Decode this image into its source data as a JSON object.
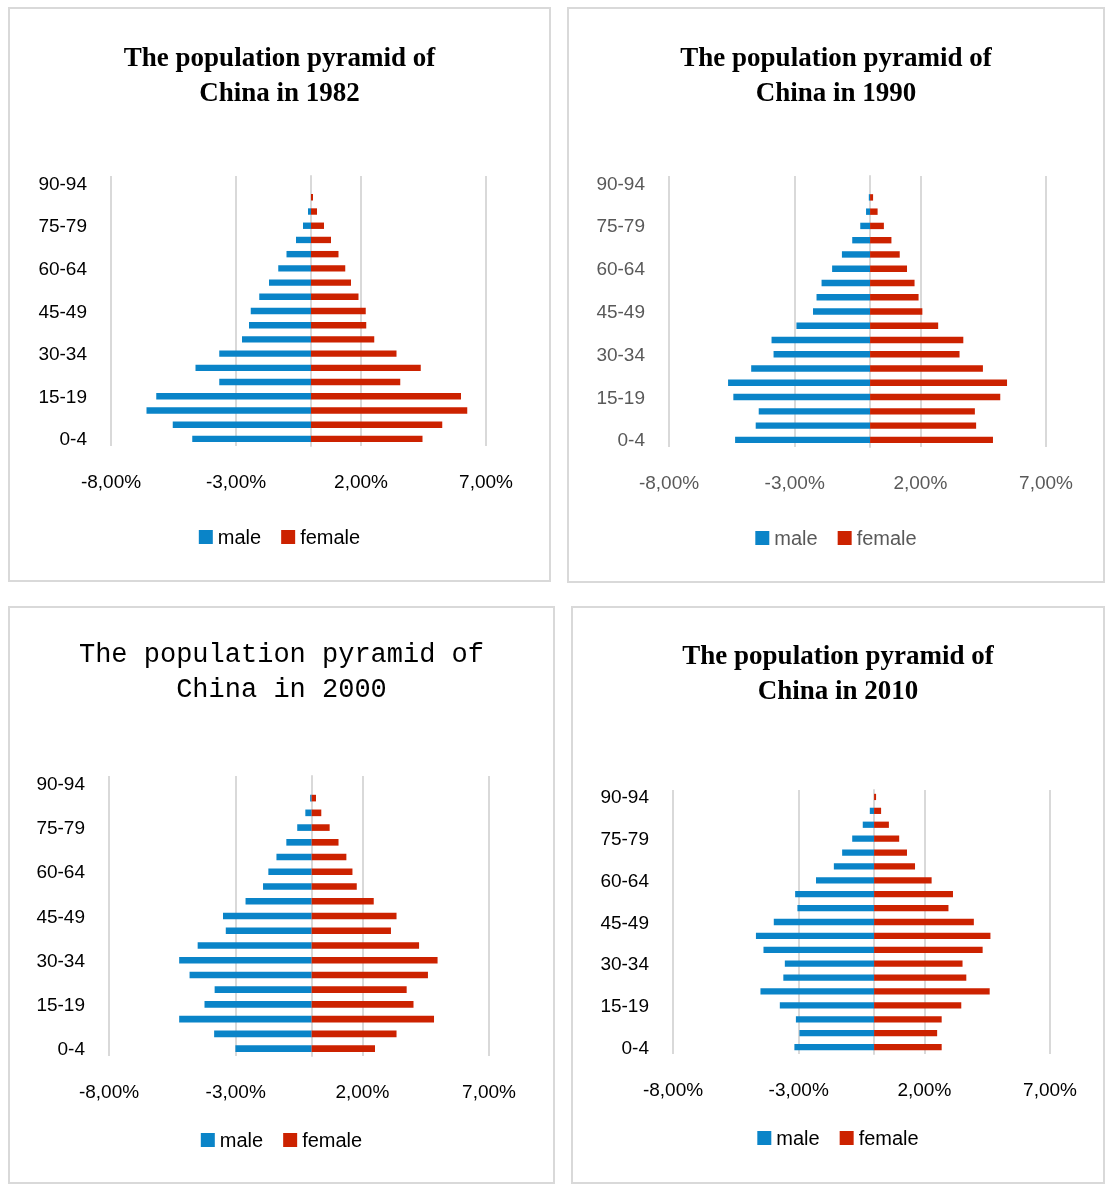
{
  "chart_data": [
    {
      "type": "bar",
      "orientation": "horizontal",
      "stacked": true,
      "title": "The population pyramid of China in 1982",
      "categories": [
        "90-94",
        null,
        null,
        "75-79",
        null,
        null,
        "60-64",
        null,
        null,
        "45-49",
        null,
        null,
        "30-34",
        null,
        null,
        "15-19",
        null,
        null,
        "0-4"
      ],
      "series": [
        {
          "name": "male",
          "color": "#0a84c8",
          "values": [
            null,
            null,
            -0.12,
            -0.32,
            -0.6,
            -0.98,
            -1.31,
            -1.68,
            -2.07,
            -2.41,
            -2.48,
            -2.76,
            -3.67,
            -4.62,
            -3.67,
            -6.19,
            -6.58,
            -5.53,
            -4.75
          ]
        },
        {
          "name": "female",
          "color": "#cc2200",
          "values": [
            null,
            0.08,
            0.24,
            0.52,
            0.8,
            1.1,
            1.37,
            1.6,
            1.9,
            2.19,
            2.21,
            2.53,
            3.42,
            4.39,
            3.57,
            6.0,
            6.25,
            5.25,
            4.46
          ]
        }
      ],
      "xlim": [
        -8,
        7
      ],
      "xticks": [
        {
          "value": -8,
          "label": "-8,00%"
        },
        {
          "value": -3,
          "label": "-3,00%"
        },
        {
          "value": 2,
          "label": "2,00%"
        },
        {
          "value": 7,
          "label": "7,00%"
        }
      ],
      "grid": "x",
      "legend": "bottom"
    },
    {
      "type": "bar",
      "orientation": "horizontal",
      "stacked": true,
      "title": "The population pyramid of China in 1990",
      "categories": [
        "90-94",
        null,
        null,
        "75-79",
        null,
        null,
        "60-64",
        null,
        null,
        "45-49",
        null,
        null,
        "30-34",
        null,
        null,
        "15-19",
        null,
        null,
        "0-4"
      ],
      "series": [
        {
          "name": "male",
          "color": "#0a84c8",
          "values": [
            null,
            -0.05,
            -0.16,
            -0.39,
            -0.71,
            -1.12,
            -1.51,
            -1.93,
            -2.13,
            -2.27,
            -2.93,
            -3.92,
            -3.84,
            -4.73,
            -5.65,
            -5.44,
            -4.43,
            -4.55,
            -5.37
          ]
        },
        {
          "name": "female",
          "color": "#cc2200",
          "values": [
            null,
            0.12,
            0.3,
            0.55,
            0.85,
            1.18,
            1.47,
            1.77,
            1.93,
            2.08,
            2.71,
            3.71,
            3.56,
            4.49,
            5.45,
            5.18,
            4.17,
            4.22,
            4.89
          ]
        }
      ],
      "xlim": [
        -8,
        7
      ],
      "xticks": [
        {
          "value": -8,
          "label": "-8,00%"
        },
        {
          "value": -3,
          "label": "-3,00%"
        },
        {
          "value": 2,
          "label": "2,00%"
        },
        {
          "value": 7,
          "label": "7,00%"
        }
      ],
      "grid": "x",
      "legend": "bottom"
    },
    {
      "type": "bar",
      "orientation": "horizontal",
      "stacked": true,
      "title": "The population pyramid of China in 2000",
      "categories": [
        "90-94",
        null,
        null,
        "75-79",
        null,
        null,
        "60-64",
        null,
        null,
        "45-49",
        null,
        null,
        "30-34",
        null,
        null,
        "15-19",
        null,
        null,
        "0-4"
      ],
      "series": [
        {
          "name": "male",
          "color": "#0a84c8",
          "values": [
            null,
            -0.06,
            -0.25,
            -0.57,
            -1.0,
            -1.39,
            -1.71,
            -1.92,
            -2.61,
            -3.5,
            -3.39,
            -4.5,
            -5.23,
            -4.82,
            -3.83,
            -4.23,
            -5.23,
            -3.85,
            -3.01
          ]
        },
        {
          "name": "female",
          "color": "#cc2200",
          "values": [
            null,
            0.17,
            0.38,
            0.71,
            1.06,
            1.37,
            1.61,
            1.78,
            2.45,
            3.35,
            3.13,
            4.24,
            4.97,
            4.59,
            3.75,
            4.02,
            4.83,
            3.35,
            2.5
          ]
        }
      ],
      "xlim": [
        -8,
        7
      ],
      "xticks": [
        {
          "value": -8,
          "label": "-8,00%"
        },
        {
          "value": -3,
          "label": "-3,00%"
        },
        {
          "value": 2,
          "label": "2,00%"
        },
        {
          "value": 7,
          "label": "7,00%"
        }
      ],
      "grid": "x",
      "legend": "bottom"
    },
    {
      "type": "bar",
      "orientation": "horizontal",
      "stacked": true,
      "title": "The population pyramid of China in 2010",
      "categories": [
        "90-94",
        null,
        null,
        "75-79",
        null,
        null,
        "60-64",
        null,
        null,
        "45-49",
        null,
        null,
        "30-34",
        null,
        null,
        "15-19",
        null,
        null,
        "0-4"
      ],
      "series": [
        {
          "name": "male",
          "color": "#0a84c8",
          "values": [
            null,
            -0.17,
            -0.45,
            -0.87,
            -1.27,
            -1.6,
            -2.31,
            -3.14,
            -3.05,
            -3.99,
            -4.7,
            -4.4,
            -3.55,
            -3.61,
            -4.52,
            -3.75,
            -3.11,
            -2.97,
            -3.17
          ]
        },
        {
          "name": "female",
          "color": "#cc2200",
          "values": [
            0.08,
            0.28,
            0.59,
            1.0,
            1.31,
            1.63,
            2.29,
            3.14,
            2.96,
            3.97,
            4.63,
            4.32,
            3.52,
            3.67,
            4.6,
            3.47,
            2.69,
            2.51,
            2.69
          ]
        }
      ],
      "xlim": [
        -8,
        7
      ],
      "xticks": [
        {
          "value": -8,
          "label": "-8,00%"
        },
        {
          "value": -3,
          "label": "-3,00%"
        },
        {
          "value": 2,
          "label": "2,00%"
        },
        {
          "value": 7,
          "label": "7,00%"
        }
      ],
      "grid": "x",
      "legend": "bottom"
    }
  ]
}
